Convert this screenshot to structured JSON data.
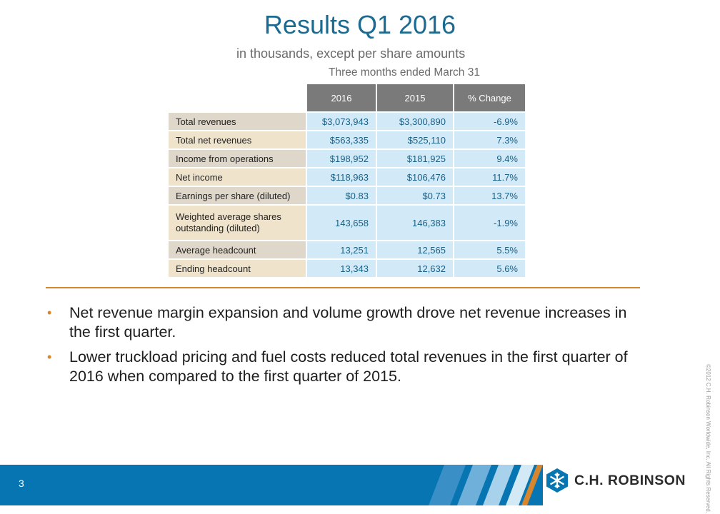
{
  "slide": {
    "title": "Results Q1 2016",
    "subtitle": "in thousands, except per share amounts",
    "period_label": "Three months ended March 31",
    "page_number": "3",
    "copyright": "©2012 C.H. Robinson Worldwide, Inc. All Rights Reserved.",
    "brand": "C.H. ROBINSON",
    "colors": {
      "title": "#1b6a91",
      "accent": "#d8862d",
      "footer_bar": "#0775b2"
    }
  },
  "table": {
    "headers": [
      "2016",
      "2015",
      "% Change"
    ],
    "rows": [
      {
        "label": "Total revenues",
        "v2016": "$3,073,943",
        "v2015": "$3,300,890",
        "change": "-6.9%"
      },
      {
        "label": "Total net revenues",
        "v2016": "$563,335",
        "v2015": "$525,110",
        "change": "7.3%"
      },
      {
        "label": "Income from operations",
        "v2016": "$198,952",
        "v2015": "$181,925",
        "change": "9.4%"
      },
      {
        "label": "Net income",
        "v2016": "$118,963",
        "v2015": "$106,476",
        "change": "11.7%"
      },
      {
        "label": "Earnings per share (diluted)",
        "v2016": "$0.83",
        "v2015": "$0.73",
        "change": "13.7%"
      },
      {
        "label": "Weighted average shares outstanding (diluted)",
        "v2016": "143,658",
        "v2015": "146,383",
        "change": "-1.9%"
      },
      {
        "label": "Average headcount",
        "v2016": "13,251",
        "v2015": "12,565",
        "change": "5.5%"
      },
      {
        "label": "Ending headcount",
        "v2016": "13,343",
        "v2015": "12,632",
        "change": "5.6%"
      }
    ]
  },
  "bullets": [
    "Net revenue margin expansion and volume growth drove net revenue increases in the first quarter.",
    "Lower truckload pricing and fuel costs reduced total revenues in the first quarter of 2016 when compared to the first quarter of 2015."
  ]
}
